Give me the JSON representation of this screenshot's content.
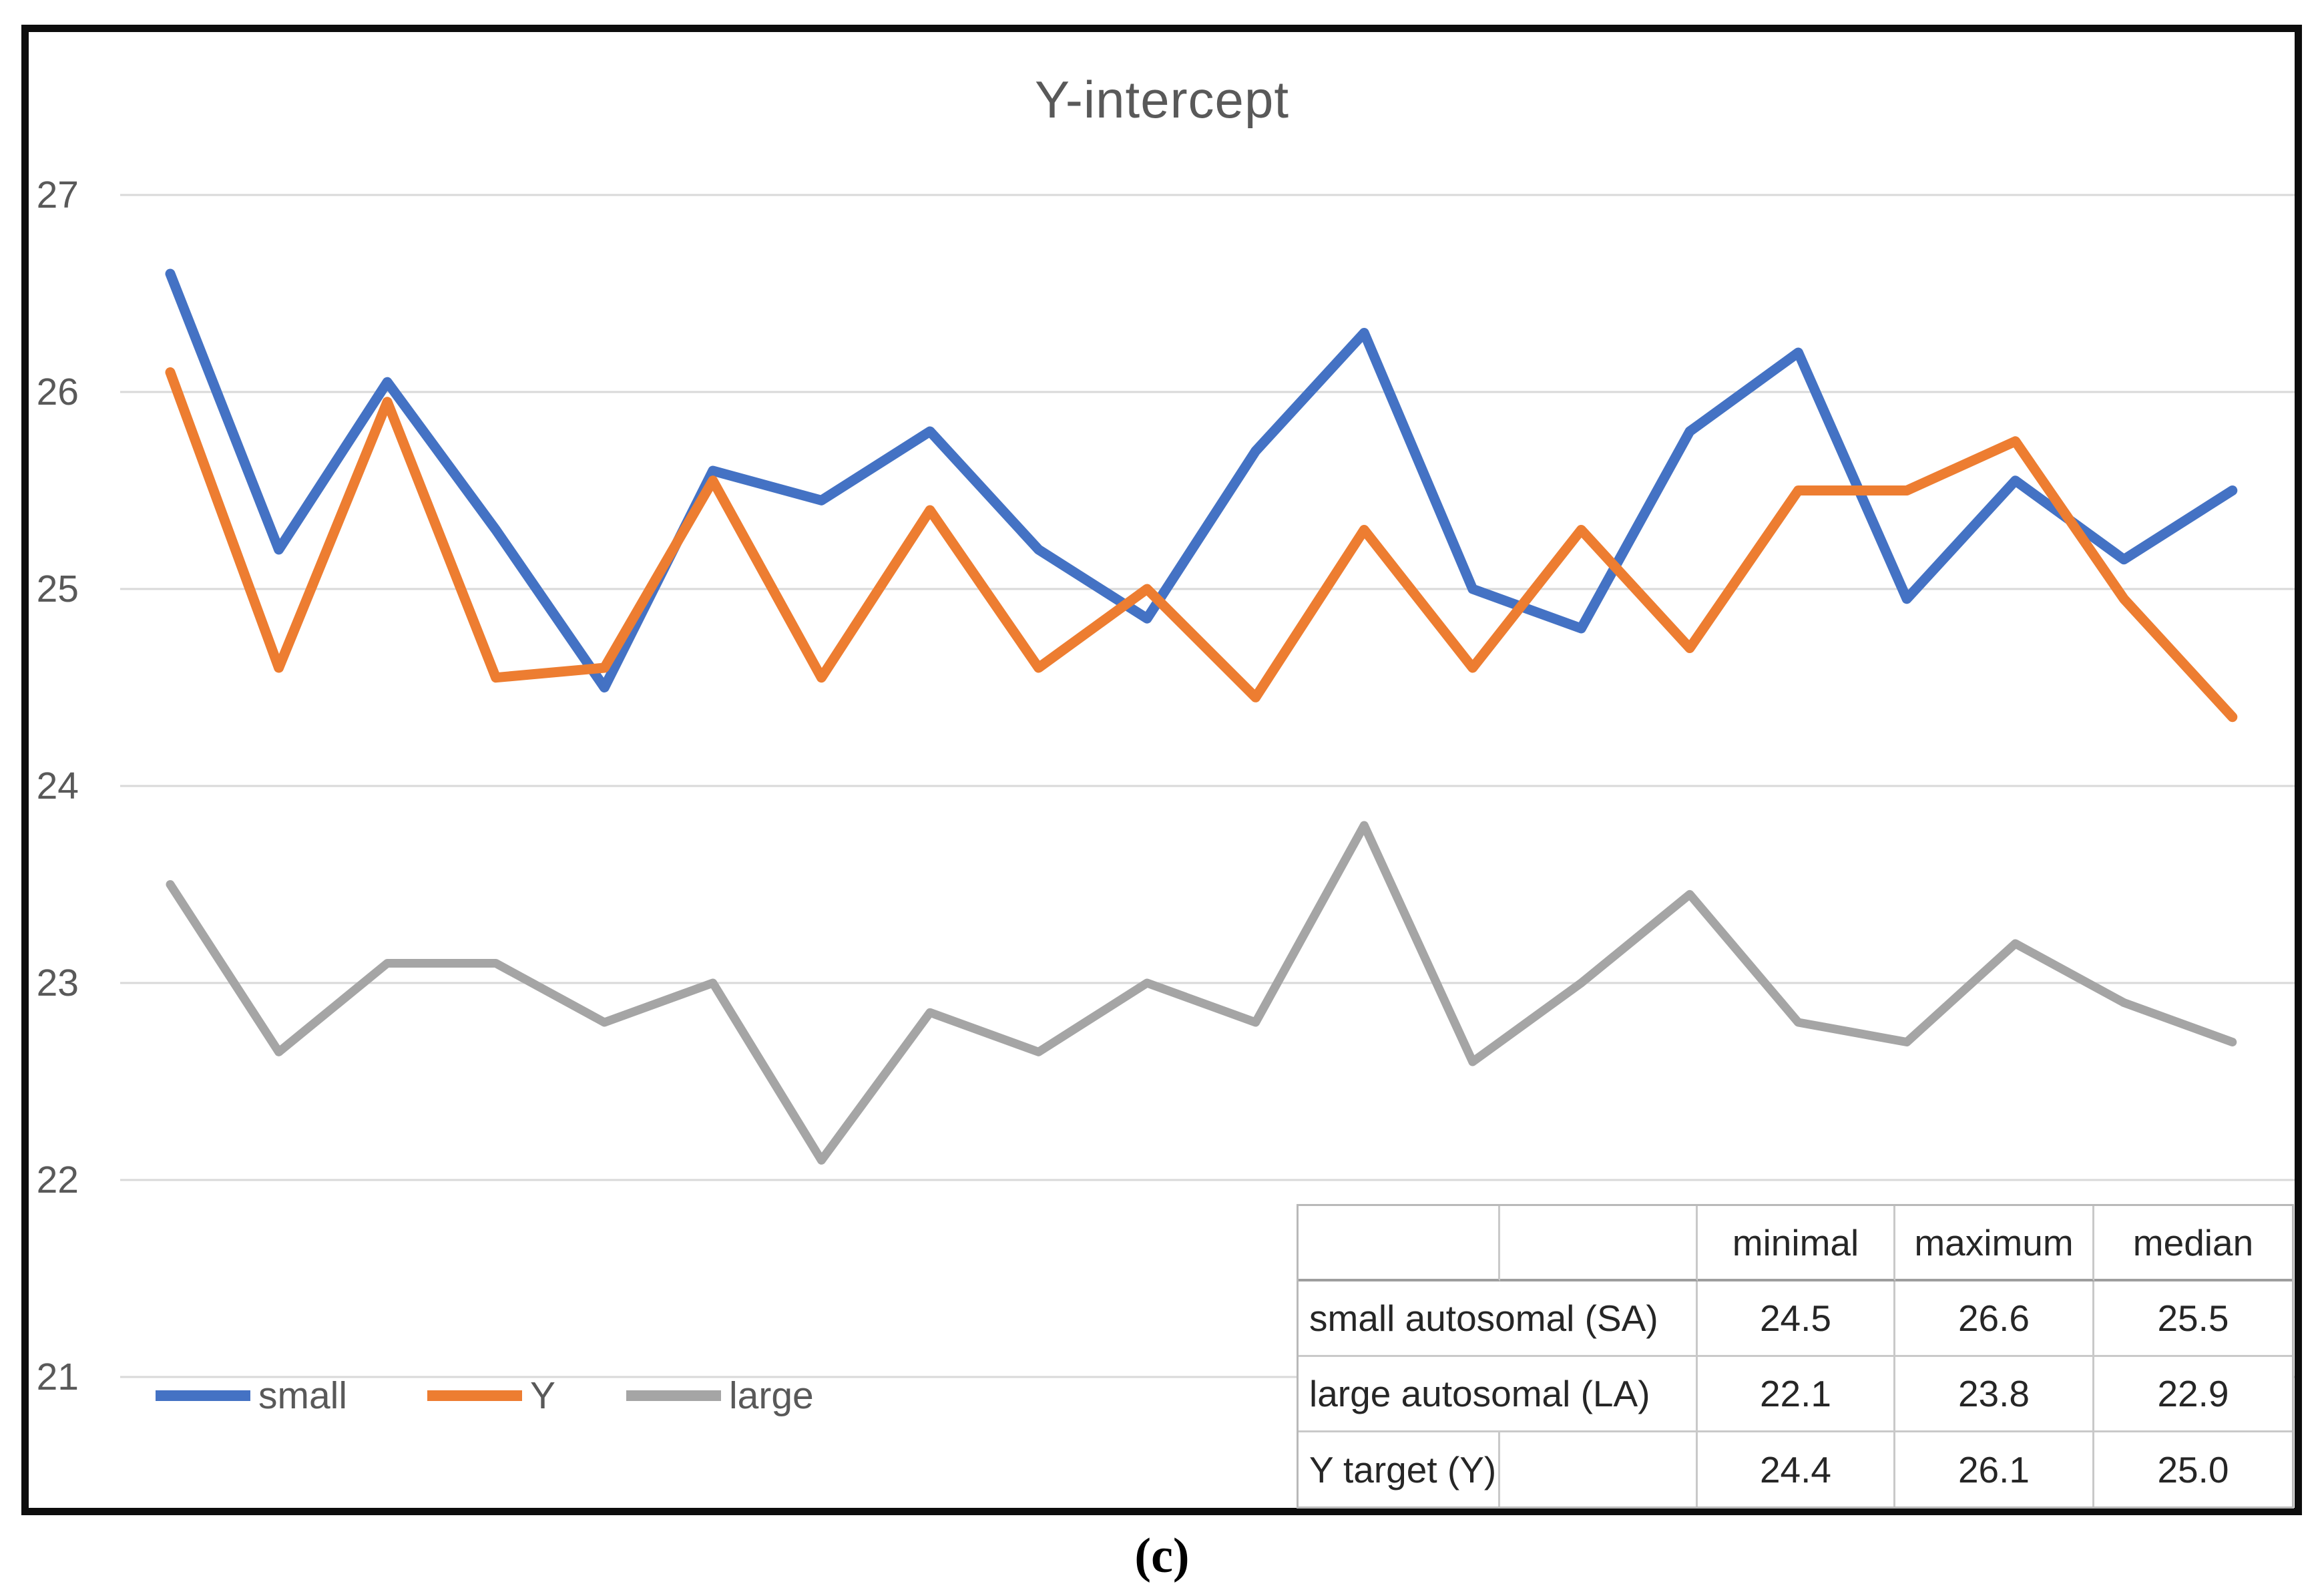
{
  "title": "Y-intercept",
  "caption": "(c)",
  "colors": {
    "grid": "#D9D9D9",
    "axis_text": "#595959",
    "title_text": "#595959",
    "figure_border": "#0D0D0D",
    "series_blue": "#4472C4",
    "series_orange": "#ED7D31",
    "series_gray": "#A5A5A5"
  },
  "chart_data": {
    "type": "line",
    "title": "Y-intercept",
    "x_count": 20,
    "x_labels_visible": false,
    "ylim": [
      21,
      27
    ],
    "y_ticks": [
      "27",
      "26",
      "25",
      "24",
      "23",
      "22",
      "21"
    ],
    "grid": true,
    "legend_position": "bottom-left",
    "series": [
      {
        "name": "small",
        "color": "#4472C4",
        "values": [
          26.6,
          25.2,
          26.05,
          25.3,
          24.5,
          25.6,
          25.45,
          25.8,
          25.2,
          24.85,
          25.7,
          26.3,
          25.0,
          24.8,
          25.8,
          26.2,
          24.95,
          25.55,
          25.15,
          25.5
        ]
      },
      {
        "name": "Y",
        "color": "#ED7D31",
        "values": [
          26.1,
          24.6,
          25.95,
          24.55,
          24.6,
          25.55,
          24.55,
          25.4,
          24.6,
          25.0,
          24.45,
          25.3,
          24.6,
          25.3,
          24.7,
          25.5,
          25.5,
          25.75,
          24.95,
          24.35
        ]
      },
      {
        "name": "large",
        "color": "#A5A5A5",
        "values": [
          23.5,
          22.65,
          23.1,
          23.1,
          22.8,
          23.0,
          22.1,
          22.85,
          22.65,
          23.0,
          22.8,
          23.8,
          22.6,
          23.0,
          23.45,
          22.8,
          22.7,
          23.2,
          22.9,
          22.7
        ]
      }
    ]
  },
  "table": {
    "headers": [
      "",
      "",
      "minimal",
      "maximum",
      "median"
    ],
    "rows": [
      [
        "small autosomal (SA)",
        "24.5",
        "26.6",
        "25.5"
      ],
      [
        "large autosomal (LA)",
        "22.1",
        "23.8",
        "22.9"
      ],
      [
        "Y target (Y)",
        "24.4",
        "26.1",
        "25.0"
      ]
    ]
  }
}
